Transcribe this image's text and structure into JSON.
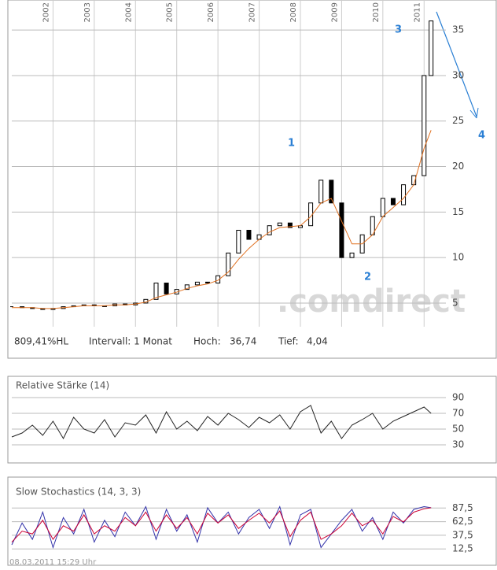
{
  "chart_data": [
    {
      "type": "candlestick",
      "x": [
        2001,
        2001.25,
        2001.5,
        2001.75,
        2002,
        2002.25,
        2002.5,
        2002.75,
        2003,
        2003.25,
        2003.5,
        2003.75,
        2004,
        2004.25,
        2004.5,
        2004.75,
        2005,
        2005.25,
        2005.5,
        2005.75,
        2006,
        2006.25,
        2006.5,
        2006.75,
        2007,
        2007.25,
        2007.5,
        2007.75,
        2008,
        2008.25,
        2008.5,
        2008.75,
        2009,
        2009.25,
        2009.5,
        2009.75,
        2010,
        2010.25,
        2010.5,
        2010.75,
        2011,
        2011.17
      ],
      "close": [
        4.6,
        4.5,
        4.4,
        4.3,
        4.4,
        4.6,
        4.7,
        4.8,
        4.7,
        4.7,
        4.9,
        4.8,
        5.0,
        5.4,
        7.2,
        6.0,
        6.5,
        7.0,
        7.3,
        7.2,
        8.0,
        10.5,
        13.0,
        12.0,
        12.5,
        13.5,
        13.8,
        13.3,
        13.5,
        16.0,
        18.5,
        16.0,
        10.0,
        10.5,
        12.5,
        14.5,
        16.5,
        15.8,
        18.0,
        19.0,
        30.0,
        36.0
      ],
      "series": [
        {
          "name": null,
          "color": "#e07020",
          "values": [
            4.5,
            4.5,
            4.5,
            4.4,
            4.4,
            4.5,
            4.6,
            4.7,
            4.7,
            4.7,
            4.8,
            4.8,
            4.9,
            5.1,
            5.6,
            5.9,
            6.2,
            6.6,
            6.9,
            7.1,
            7.5,
            8.4,
            9.8,
            11.0,
            12.0,
            12.8,
            13.3,
            13.4,
            13.5,
            14.5,
            16.0,
            16.5,
            14.0,
            11.5,
            11.5,
            12.5,
            14.5,
            15.5,
            16.5,
            18.0,
            22.0,
            24.0
          ]
        }
      ],
      "xlim": [
        2001,
        2011.3
      ],
      "xticks": [
        {
          "value": 2002,
          "label": "2002"
        },
        {
          "value": 2003,
          "label": "2003"
        },
        {
          "value": 2004,
          "label": "2004"
        },
        {
          "value": 2005,
          "label": "2005"
        },
        {
          "value": 2006,
          "label": "2006"
        },
        {
          "value": 2007,
          "label": "2007"
        },
        {
          "value": 2008,
          "label": "2008"
        },
        {
          "value": 2009,
          "label": "2009"
        },
        {
          "value": 2010,
          "label": "2010"
        },
        {
          "value": 2011,
          "label": "2011"
        }
      ],
      "ylim": [
        2.4,
        38.3
      ],
      "yticks": [
        5,
        10,
        15,
        20,
        25,
        30,
        35
      ],
      "annotations": [
        "1",
        "2",
        "3",
        "4"
      ],
      "grid": true
    },
    {
      "type": "line",
      "title": "Relative Stärke (14)",
      "x": [
        2001,
        2001.25,
        2001.5,
        2001.75,
        2002,
        2002.25,
        2002.5,
        2002.75,
        2003,
        2003.25,
        2003.5,
        2003.75,
        2004,
        2004.25,
        2004.5,
        2004.75,
        2005,
        2005.25,
        2005.5,
        2005.75,
        2006,
        2006.25,
        2006.5,
        2006.75,
        2007,
        2007.25,
        2007.5,
        2007.75,
        2008,
        2008.25,
        2008.5,
        2008.75,
        2009,
        2009.25,
        2009.5,
        2009.75,
        2010,
        2010.25,
        2010.5,
        2010.75,
        2011,
        2011.17
      ],
      "series": [
        {
          "name": null,
          "color": "#222222",
          "values": [
            40,
            45,
            55,
            42,
            60,
            38,
            65,
            50,
            45,
            62,
            40,
            58,
            55,
            68,
            45,
            72,
            50,
            60,
            48,
            66,
            55,
            70,
            62,
            52,
            65,
            58,
            68,
            50,
            72,
            80,
            45,
            60,
            38,
            55,
            62,
            70,
            50,
            60,
            66,
            72,
            78,
            70
          ]
        }
      ],
      "xlim": [
        2001,
        2011.3
      ],
      "ylim": [
        17,
        95
      ],
      "yticks": [
        30,
        50,
        70,
        90
      ],
      "grid": true
    },
    {
      "type": "line",
      "title": "Slow Stochastics (14, 3, 3)",
      "x": [
        2001,
        2001.25,
        2001.5,
        2001.75,
        2002,
        2002.25,
        2002.5,
        2002.75,
        2003,
        2003.25,
        2003.5,
        2003.75,
        2004,
        2004.25,
        2004.5,
        2004.75,
        2005,
        2005.25,
        2005.5,
        2005.75,
        2006,
        2006.25,
        2006.5,
        2006.75,
        2007,
        2007.25,
        2007.5,
        2007.75,
        2008,
        2008.25,
        2008.5,
        2008.75,
        2009,
        2009.25,
        2009.5,
        2009.75,
        2010,
        2010.25,
        2010.5,
        2010.75,
        2011,
        2011.17
      ],
      "series": [
        {
          "name": null,
          "color": "#3333aa",
          "values": [
            20,
            60,
            30,
            80,
            15,
            70,
            40,
            85,
            25,
            65,
            35,
            80,
            55,
            90,
            30,
            85,
            45,
            75,
            25,
            88,
            60,
            80,
            40,
            70,
            85,
            50,
            90,
            20,
            75,
            85,
            15,
            40,
            65,
            85,
            45,
            70,
            30,
            80,
            60,
            85,
            90,
            88
          ]
        },
        {
          "name": null,
          "color": "#cc0033",
          "values": [
            25,
            45,
            40,
            65,
            30,
            55,
            45,
            75,
            40,
            55,
            45,
            70,
            55,
            80,
            45,
            75,
            50,
            70,
            40,
            78,
            60,
            75,
            50,
            65,
            78,
            60,
            82,
            35,
            65,
            80,
            30,
            40,
            55,
            78,
            55,
            65,
            40,
            72,
            62,
            80,
            86,
            88
          ]
        }
      ],
      "xlim": [
        2001,
        2011.3
      ],
      "ylim": [
        -6,
        98
      ],
      "yticks": [
        {
          "value": 12.5,
          "label": "12,5"
        },
        {
          "value": 37.5,
          "label": "37,5"
        },
        {
          "value": 62.5,
          "label": "62,5"
        },
        {
          "value": 87.5,
          "label": "87,5"
        }
      ],
      "grid": true
    }
  ],
  "info": {
    "performance": "809,41%HL",
    "interval": "Intervall: 1 Monat",
    "high_label": "Hoch:",
    "high": "36,74",
    "low_label": "Tief:",
    "low": "4,04"
  },
  "watermark": ".comdirect",
  "timestamp": "08.03.2011 15:29 Uhr"
}
